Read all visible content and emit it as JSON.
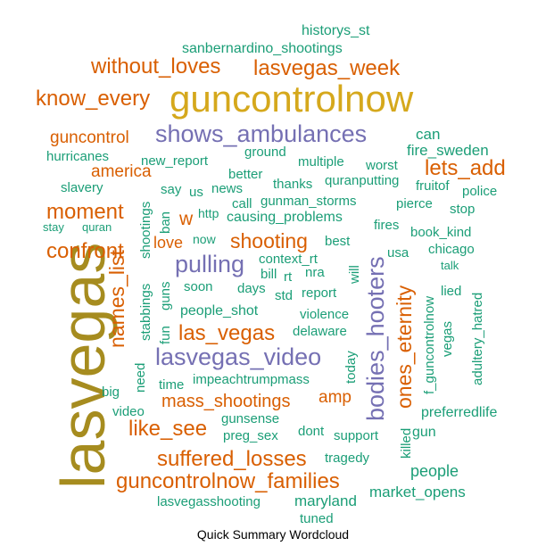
{
  "caption": "Quick Summary Wordcloud",
  "palette": {
    "gold": "#d5a81c",
    "purple": "#7570b3",
    "orange": "#d95f02",
    "teal": "#1b9e77",
    "olive": "#a68c1f"
  },
  "words": [
    {
      "text": "lasvegas",
      "color": "#a68c1f"
    },
    {
      "text": "guncontrolnow",
      "color": "#d5a81c"
    },
    {
      "text": "shows_ambulances",
      "color": "#7570b3"
    },
    {
      "text": "lasvegas_video",
      "color": "#7570b3"
    },
    {
      "text": "bodies_hooters",
      "color": "#7570b3"
    },
    {
      "text": "pulling",
      "color": "#7570b3"
    },
    {
      "text": "without_loves",
      "color": "#d95f02"
    },
    {
      "text": "lasvegas_week",
      "color": "#d95f02"
    },
    {
      "text": "know_every",
      "color": "#d95f02"
    },
    {
      "text": "guncontrol",
      "color": "#d95f02"
    },
    {
      "text": "america",
      "color": "#d95f02"
    },
    {
      "text": "lets_add",
      "color": "#d95f02"
    },
    {
      "text": "moment",
      "color": "#d95f02"
    },
    {
      "text": "confront",
      "color": "#d95f02"
    },
    {
      "text": "shooting",
      "color": "#d95f02"
    },
    {
      "text": "las_vegas",
      "color": "#d95f02"
    },
    {
      "text": "mass_shootings",
      "color": "#d95f02"
    },
    {
      "text": "like_see",
      "color": "#d95f02"
    },
    {
      "text": "suffered_losses",
      "color": "#d95f02"
    },
    {
      "text": "guncontrolnow_families",
      "color": "#d95f02"
    },
    {
      "text": "names_list",
      "color": "#d95f02"
    },
    {
      "text": "ones_eternity",
      "color": "#d95f02"
    },
    {
      "text": "amp",
      "color": "#d95f02"
    },
    {
      "text": "w",
      "color": "#d95f02"
    },
    {
      "text": "love",
      "color": "#d95f02"
    },
    {
      "text": "historys_st",
      "color": "#1b9e77"
    },
    {
      "text": "sanbernardino_shootings",
      "color": "#1b9e77"
    },
    {
      "text": "can",
      "color": "#1b9e77"
    },
    {
      "text": "fire_sweden",
      "color": "#1b9e77"
    },
    {
      "text": "hurricanes",
      "color": "#1b9e77"
    },
    {
      "text": "new_report",
      "color": "#1b9e77"
    },
    {
      "text": "ground",
      "color": "#1b9e77"
    },
    {
      "text": "multiple",
      "color": "#1b9e77"
    },
    {
      "text": "worst",
      "color": "#1b9e77"
    },
    {
      "text": "better",
      "color": "#1b9e77"
    },
    {
      "text": "quranputting",
      "color": "#1b9e77"
    },
    {
      "text": "slavery",
      "color": "#1b9e77"
    },
    {
      "text": "say",
      "color": "#1b9e77"
    },
    {
      "text": "us",
      "color": "#1b9e77"
    },
    {
      "text": "news",
      "color": "#1b9e77"
    },
    {
      "text": "thanks",
      "color": "#1b9e77"
    },
    {
      "text": "fruitof",
      "color": "#1b9e77"
    },
    {
      "text": "police",
      "color": "#1b9e77"
    },
    {
      "text": "gunman_storms",
      "color": "#1b9e77"
    },
    {
      "text": "pierce",
      "color": "#1b9e77"
    },
    {
      "text": "call",
      "color": "#1b9e77"
    },
    {
      "text": "http",
      "color": "#1b9e77"
    },
    {
      "text": "causing_problems",
      "color": "#1b9e77"
    },
    {
      "text": "stop",
      "color": "#1b9e77"
    },
    {
      "text": "stay",
      "color": "#1b9e77"
    },
    {
      "text": "quran",
      "color": "#1b9e77"
    },
    {
      "text": "fires",
      "color": "#1b9e77"
    },
    {
      "text": "book_kind",
      "color": "#1b9e77"
    },
    {
      "text": "now",
      "color": "#1b9e77"
    },
    {
      "text": "best",
      "color": "#1b9e77"
    },
    {
      "text": "usa",
      "color": "#1b9e77"
    },
    {
      "text": "chicago",
      "color": "#1b9e77"
    },
    {
      "text": "context_rt",
      "color": "#1b9e77"
    },
    {
      "text": "talk",
      "color": "#1b9e77"
    },
    {
      "text": "bill",
      "color": "#1b9e77"
    },
    {
      "text": "rt",
      "color": "#1b9e77"
    },
    {
      "text": "nra",
      "color": "#1b9e77"
    },
    {
      "text": "soon",
      "color": "#1b9e77"
    },
    {
      "text": "days",
      "color": "#1b9e77"
    },
    {
      "text": "std",
      "color": "#1b9e77"
    },
    {
      "text": "report",
      "color": "#1b9e77"
    },
    {
      "text": "lied",
      "color": "#1b9e77"
    },
    {
      "text": "people_shot",
      "color": "#1b9e77"
    },
    {
      "text": "violence",
      "color": "#1b9e77"
    },
    {
      "text": "delaware",
      "color": "#1b9e77"
    },
    {
      "text": "impeachtrumpmass",
      "color": "#1b9e77"
    },
    {
      "text": "time",
      "color": "#1b9e77"
    },
    {
      "text": "big",
      "color": "#1b9e77"
    },
    {
      "text": "video",
      "color": "#1b9e77"
    },
    {
      "text": "preferredlife",
      "color": "#1b9e77"
    },
    {
      "text": "gunsense",
      "color": "#1b9e77"
    },
    {
      "text": "preg_sex",
      "color": "#1b9e77"
    },
    {
      "text": "dont",
      "color": "#1b9e77"
    },
    {
      "text": "support",
      "color": "#1b9e77"
    },
    {
      "text": "gun",
      "color": "#1b9e77"
    },
    {
      "text": "tragedy",
      "color": "#1b9e77"
    },
    {
      "text": "people",
      "color": "#1b9e77"
    },
    {
      "text": "market_opens",
      "color": "#1b9e77"
    },
    {
      "text": "lasvegasshooting",
      "color": "#1b9e77"
    },
    {
      "text": "maryland",
      "color": "#1b9e77"
    },
    {
      "text": "tuned",
      "color": "#1b9e77"
    },
    {
      "text": "shootings",
      "color": "#1b9e77"
    },
    {
      "text": "ban",
      "color": "#1b9e77"
    },
    {
      "text": "guns",
      "color": "#1b9e77"
    },
    {
      "text": "stabbings",
      "color": "#1b9e77"
    },
    {
      "text": "fun",
      "color": "#1b9e77"
    },
    {
      "text": "need",
      "color": "#1b9e77"
    },
    {
      "text": "will",
      "color": "#1b9e77"
    },
    {
      "text": "today",
      "color": "#1b9e77"
    },
    {
      "text": "killed",
      "color": "#1b9e77"
    },
    {
      "text": "f_guncontrolnow",
      "color": "#1b9e77"
    },
    {
      "text": "vegas",
      "color": "#1b9e77"
    },
    {
      "text": "adultery_hatred",
      "color": "#1b9e77"
    }
  ]
}
